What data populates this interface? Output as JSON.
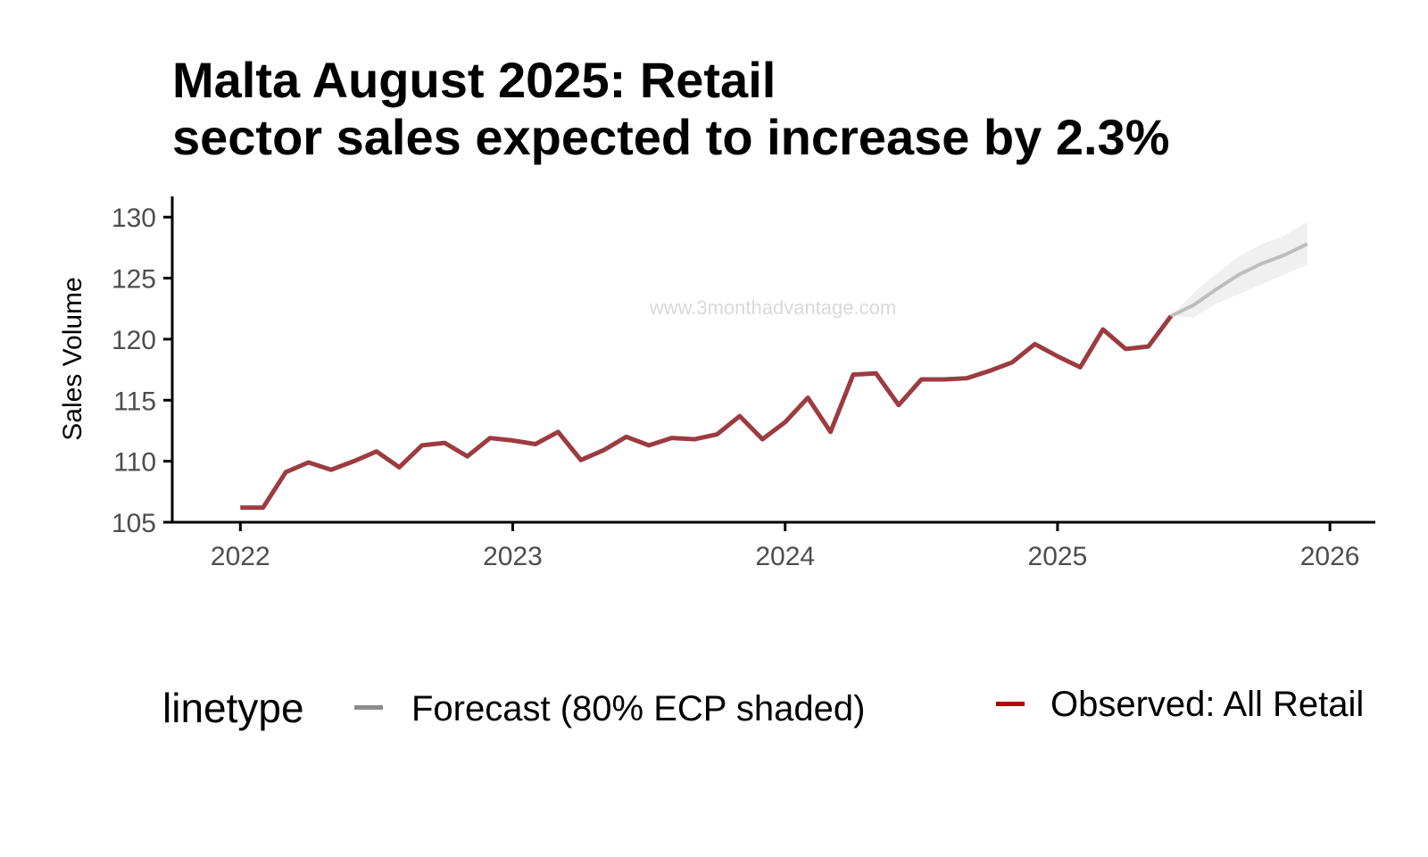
{
  "title_lines": [
    "Malta August 2025: Retail",
    "sector sales expected to increase by 2.3%"
  ],
  "watermark": "www.3monthadvantage.com",
  "legend": {
    "title": "linetype",
    "items": [
      {
        "label": "Forecast (80% ECP shaded)",
        "color": "#8c8c8c"
      },
      {
        "label": "Observed: All Retail",
        "color": "#b30000"
      }
    ]
  },
  "chart_data": {
    "type": "line",
    "title": "Malta August 2025: Retail sector sales expected to increase by 2.3%",
    "xlabel": "",
    "ylabel": "Sales Volume",
    "xlim": [
      "2021-10",
      "2026-03"
    ],
    "ylim": [
      105,
      131.7
    ],
    "x_ticks": [
      "2022",
      "2023",
      "2024",
      "2025",
      "2026"
    ],
    "y_ticks": [
      105,
      110,
      115,
      120,
      125,
      130
    ],
    "grid": false,
    "legend_position": "bottom",
    "colors": {
      "observed": "#9c3b40",
      "forecast": "#bdbdbd",
      "band": "#f0f0f0"
    },
    "series": [
      {
        "name": "Observed: All Retail",
        "x": [
          "2022-01",
          "2022-02",
          "2022-03",
          "2022-04",
          "2022-05",
          "2022-06",
          "2022-07",
          "2022-08",
          "2022-09",
          "2022-10",
          "2022-11",
          "2022-12",
          "2023-01",
          "2023-02",
          "2023-03",
          "2023-04",
          "2023-05",
          "2023-06",
          "2023-07",
          "2023-08",
          "2023-09",
          "2023-10",
          "2023-11",
          "2023-12",
          "2024-01",
          "2024-02",
          "2024-03",
          "2024-04",
          "2024-05",
          "2024-06",
          "2024-07",
          "2024-08",
          "2024-09",
          "2024-10",
          "2024-11",
          "2024-12",
          "2025-01",
          "2025-02",
          "2025-03",
          "2025-04",
          "2025-05",
          "2025-06"
        ],
        "values": [
          106.2,
          106.2,
          109.1,
          109.9,
          109.3,
          110.0,
          110.8,
          109.5,
          111.3,
          111.5,
          110.4,
          111.9,
          111.7,
          111.4,
          112.4,
          110.1,
          110.9,
          112.0,
          111.3,
          111.9,
          111.8,
          112.2,
          113.7,
          111.8,
          113.2,
          115.2,
          112.4,
          117.1,
          117.2,
          114.6,
          116.7,
          116.7,
          116.8,
          117.4,
          118.1,
          119.6,
          118.6,
          117.7,
          120.8,
          119.2,
          119.4,
          121.9
        ]
      },
      {
        "name": "Forecast (80% ECP shaded)",
        "x": [
          "2025-06",
          "2025-07",
          "2025-08",
          "2025-09",
          "2025-10",
          "2025-11",
          "2025-12"
        ],
        "values": [
          121.9,
          122.8,
          124.1,
          125.3,
          126.2,
          126.9,
          127.8
        ],
        "lower": [
          121.9,
          121.8,
          122.9,
          123.7,
          124.5,
          125.3,
          126.1
        ],
        "upper": [
          121.9,
          123.8,
          125.4,
          126.8,
          127.8,
          128.5,
          129.6
        ]
      }
    ]
  }
}
